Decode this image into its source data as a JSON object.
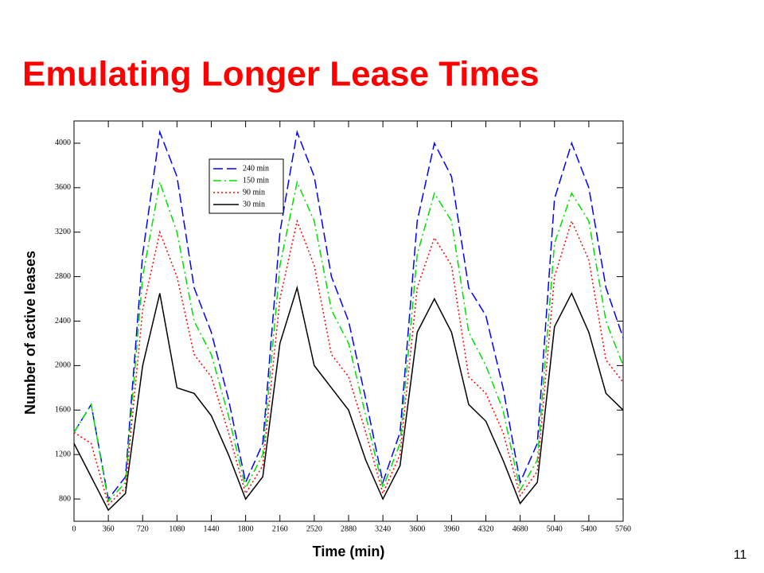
{
  "slide": {
    "title": "Emulating Longer Lease Times",
    "page_number": "11"
  },
  "chart_data": {
    "type": "line",
    "xlabel": "Time (min)",
    "ylabel": "Number of active leases",
    "x": [
      0,
      180,
      360,
      540,
      720,
      900,
      1080,
      1260,
      1440,
      1620,
      1800,
      1980,
      2160,
      2340,
      2520,
      2700,
      2880,
      3060,
      3240,
      3420,
      3600,
      3780,
      3960,
      4140,
      4320,
      4500,
      4680,
      4860,
      5040,
      5220,
      5400,
      5580,
      5760
    ],
    "series": [
      {
        "name": "240 min",
        "color": "#0000ff",
        "style": "dashed",
        "values": [
          1400,
          1650,
          800,
          1000,
          3000,
          4100,
          3700,
          2700,
          2300,
          1700,
          950,
          1300,
          3200,
          4100,
          3700,
          2800,
          2400,
          1700,
          950,
          1400,
          3300,
          4000,
          3700,
          2700,
          2450,
          1800,
          950,
          1300,
          3500,
          4000,
          3600,
          2700,
          2250
        ]
      },
      {
        "name": "150 min",
        "color": "#00e000",
        "style": "dashdot",
        "values": [
          1400,
          1650,
          780,
          950,
          2800,
          3650,
          3200,
          2400,
          2100,
          1550,
          900,
          1200,
          2900,
          3650,
          3300,
          2500,
          2200,
          1550,
          900,
          1300,
          3000,
          3550,
          3300,
          2300,
          2000,
          1600,
          880,
          1150,
          3100,
          3550,
          3300,
          2400,
          2000
        ]
      },
      {
        "name": "90 min",
        "color": "#ff0000",
        "style": "dotted",
        "values": [
          1400,
          1300,
          750,
          900,
          2500,
          3200,
          2800,
          2100,
          1900,
          1400,
          850,
          1100,
          2600,
          3300,
          2900,
          2100,
          1900,
          1400,
          850,
          1200,
          2700,
          3150,
          2900,
          1900,
          1750,
          1400,
          830,
          1050,
          2800,
          3300,
          2950,
          2050,
          1850
        ]
      },
      {
        "name": "30 min",
        "color": "#000000",
        "style": "solid",
        "values": [
          1300,
          1000,
          700,
          850,
          2000,
          2650,
          1800,
          1750,
          1550,
          1200,
          800,
          1000,
          2200,
          2700,
          2000,
          1800,
          1600,
          1150,
          800,
          1100,
          2300,
          2600,
          2300,
          1650,
          1500,
          1150,
          760,
          950,
          2350,
          2650,
          2300,
          1750,
          1600
        ]
      }
    ],
    "xlim": [
      0,
      5760
    ],
    "ylim": [
      600,
      4200
    ],
    "xticks": [
      0,
      360,
      720,
      1080,
      1440,
      1800,
      2160,
      2520,
      2880,
      3240,
      3600,
      3960,
      4320,
      4680,
      5040,
      5400,
      5760
    ],
    "yticks": [
      800,
      1200,
      1600,
      2000,
      2400,
      2800,
      3200,
      3600,
      4000
    ],
    "legend": "upper left"
  }
}
